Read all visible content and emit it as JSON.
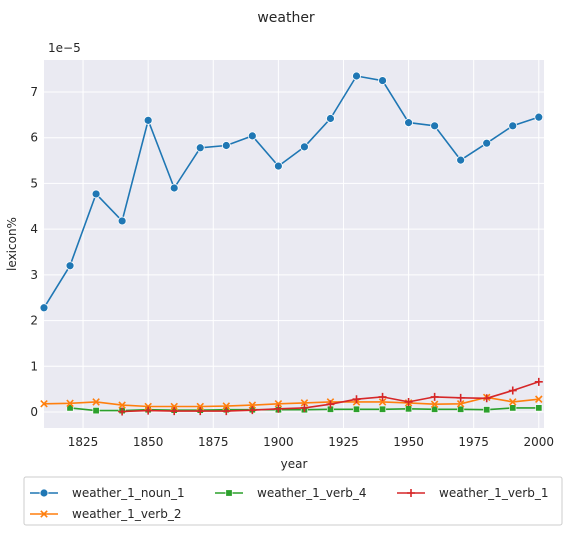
{
  "chart_data": {
    "type": "line",
    "title": "weather",
    "xlabel": "year",
    "ylabel": "lexicon%",
    "y_offset_label": "1e−5",
    "xlim": [
      1810,
      2002
    ],
    "ylim": [
      -0.35,
      7.7
    ],
    "x_ticks": [
      1825,
      1850,
      1875,
      1900,
      1925,
      1950,
      1975,
      2000
    ],
    "y_ticks": [
      0,
      1,
      2,
      3,
      4,
      5,
      6,
      7
    ],
    "grid": true,
    "legend_position": "bottom",
    "x": [
      1810,
      1820,
      1830,
      1840,
      1850,
      1860,
      1870,
      1880,
      1890,
      1900,
      1910,
      1920,
      1930,
      1940,
      1950,
      1960,
      1970,
      1980,
      1990,
      2000
    ],
    "series": [
      {
        "name": "weather_1_noun_1",
        "color": "#1f77b4",
        "marker": "circle",
        "values": [
          2.28,
          3.2,
          4.77,
          4.18,
          6.38,
          4.9,
          5.78,
          5.83,
          6.04,
          5.38,
          5.8,
          6.42,
          7.35,
          7.25,
          6.33,
          6.26,
          5.51,
          5.88,
          6.26,
          6.45
        ]
      },
      {
        "name": "weather_1_verb_2",
        "color": "#ff7f0e",
        "marker": "x",
        "values": [
          0.18,
          0.19,
          0.22,
          0.15,
          0.12,
          0.12,
          0.12,
          0.13,
          0.15,
          0.18,
          0.2,
          0.22,
          0.22,
          0.22,
          0.2,
          0.17,
          0.18,
          0.32,
          0.22,
          0.28
        ]
      },
      {
        "name": "weather_1_verb_4",
        "color": "#2ca02c",
        "marker": "square",
        "values": [
          null,
          0.09,
          0.03,
          0.03,
          0.05,
          0.04,
          0.04,
          0.05,
          0.05,
          0.05,
          0.05,
          0.06,
          0.06,
          0.06,
          0.07,
          0.06,
          0.06,
          0.05,
          0.09,
          0.09
        ]
      },
      {
        "name": "weather_1_verb_1",
        "color": "#d62728",
        "marker": "plus",
        "values": [
          null,
          null,
          null,
          0.01,
          0.03,
          0.02,
          0.02,
          0.02,
          0.04,
          0.07,
          0.09,
          0.17,
          0.28,
          0.33,
          0.22,
          0.33,
          0.31,
          0.3,
          0.47,
          0.66
        ]
      }
    ]
  }
}
